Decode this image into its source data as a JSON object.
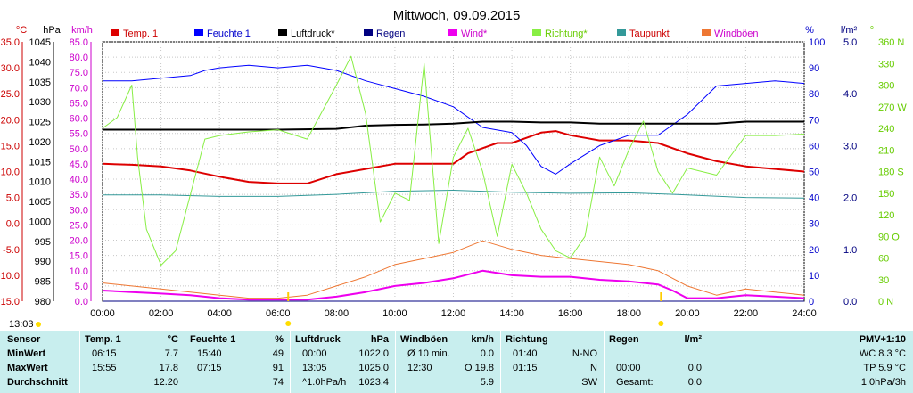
{
  "chart_data": {
    "type": "line",
    "title": "Mittwoch, 09.09.2015",
    "time_label": "13:03",
    "x_ticks": [
      "00:00",
      "02:00",
      "04:00",
      "06:00",
      "08:00",
      "10:00",
      "12:00",
      "14:00",
      "16:00",
      "18:00",
      "20:00",
      "22:00",
      "24:00"
    ],
    "left_axes": [
      {
        "unit": "°C",
        "color": "#cc0000",
        "range": [
          -15.0,
          35.0
        ],
        "ticks": [
          "35.0",
          "30.0",
          "25.0",
          "20.0",
          "15.0",
          "10.0",
          "5.0",
          "0.0",
          "-5.0",
          "-10.0",
          "-15.0"
        ]
      },
      {
        "unit": "hPa",
        "color": "#000000",
        "range": [
          980,
          1045
        ],
        "ticks": [
          "1045",
          "1040",
          "1035",
          "1030",
          "1025",
          "1020",
          "1015",
          "1010",
          "1005",
          "1000",
          "995",
          "990",
          "985",
          "980"
        ]
      },
      {
        "unit": "km/h",
        "color": "#cc00cc",
        "range": [
          0.0,
          85.0
        ],
        "ticks": [
          "85.0",
          "80.0",
          "75.0",
          "70.0",
          "65.0",
          "60.0",
          "55.0",
          "50.0",
          "45.0",
          "40.0",
          "35.0",
          "30.0",
          "25.0",
          "20.0",
          "15.0",
          "10.0",
          "5.0",
          "0.0"
        ]
      }
    ],
    "right_axes": [
      {
        "unit": "%",
        "color": "#0000cc",
        "range": [
          0,
          100
        ],
        "ticks": [
          "100",
          "90",
          "80",
          "70",
          "60",
          "50",
          "40",
          "30",
          "20",
          "10",
          "0"
        ]
      },
      {
        "unit": "l/m²",
        "color": "#000080",
        "range": [
          0.0,
          5.0
        ],
        "ticks": [
          "5.0",
          "4.0",
          "3.0",
          "2.0",
          "1.0",
          "0.0"
        ]
      },
      {
        "unit": "°",
        "color": "#66cc00",
        "range": [
          0,
          360
        ],
        "ticks": [
          "360 N",
          "330",
          "300",
          "270 W",
          "240",
          "210",
          "180 S",
          "150",
          "120",
          "90 O",
          "60",
          "30",
          "0 N"
        ]
      }
    ],
    "legend": [
      {
        "name": "Temp. 1",
        "color": "#dd0000",
        "label_color": "#cc0000"
      },
      {
        "name": "Feuchte 1",
        "color": "#0000ff",
        "label_color": "#0000cc"
      },
      {
        "name": "Luftdruck*",
        "color": "#000000",
        "label_color": "#000000"
      },
      {
        "name": "Regen",
        "color": "#000080",
        "label_color": "#000080"
      },
      {
        "name": "Wind*",
        "color": "#ee00ee",
        "label_color": "#cc00cc"
      },
      {
        "name": "Richtung*",
        "color": "#88ee44",
        "label_color": "#66cc00"
      },
      {
        "name": "Taupunkt",
        "color": "#339999",
        "label_color": "#cc0000"
      },
      {
        "name": "Windböen",
        "color": "#ee7733",
        "label_color": "#cc00cc"
      }
    ],
    "series": [
      {
        "name": "Temp. 1",
        "unit": "°C",
        "hours": [
          0,
          1,
          2,
          3,
          4,
          5,
          6,
          7,
          8,
          9,
          10,
          11,
          12,
          12.5,
          13,
          13.5,
          14,
          14.5,
          15,
          15.5,
          16,
          16.5,
          17,
          18,
          19,
          20,
          21,
          22,
          23,
          24
        ],
        "values": [
          11.5,
          11.3,
          11.0,
          10.2,
          9.0,
          8.0,
          7.7,
          7.7,
          9.5,
          10.5,
          11.5,
          11.5,
          11.5,
          13.5,
          14.5,
          15.5,
          15.5,
          16.5,
          17.5,
          17.8,
          17.0,
          16.5,
          16.0,
          16.0,
          15.5,
          13.5,
          12.0,
          11.0,
          10.5,
          10.0
        ]
      },
      {
        "name": "Feuchte 1",
        "unit": "%",
        "hours": [
          0,
          1,
          2,
          3,
          3.5,
          4,
          5,
          6,
          7,
          7.5,
          8,
          9,
          10,
          11,
          12,
          13,
          14,
          14.5,
          15,
          15.5,
          16,
          17,
          18,
          19,
          19.5,
          20,
          21,
          22,
          23,
          24
        ],
        "values": [
          85,
          85,
          86,
          87,
          89,
          90,
          91,
          90,
          91,
          90,
          89,
          85,
          82,
          79,
          75,
          67,
          65,
          60,
          52,
          49,
          53,
          60,
          64,
          64,
          68,
          72,
          83,
          84,
          85,
          84
        ]
      },
      {
        "name": "Luftdruck*",
        "unit": "hPa",
        "hours": [
          0,
          2,
          4,
          6,
          8,
          9,
          10,
          11,
          12,
          13,
          14,
          15,
          16,
          17,
          18,
          19,
          20,
          21,
          22,
          23,
          24
        ],
        "values": [
          1023.0,
          1023.0,
          1023.0,
          1023.0,
          1023.2,
          1024.0,
          1024.2,
          1024.3,
          1024.5,
          1025.0,
          1025.0,
          1024.8,
          1024.8,
          1024.5,
          1024.5,
          1024.5,
          1024.5,
          1024.5,
          1025.0,
          1025.0,
          1025.0
        ]
      },
      {
        "name": "Taupunkt",
        "unit": "°C",
        "hours": [
          0,
          2,
          4,
          6,
          8,
          10,
          12,
          14,
          16,
          18,
          20,
          22,
          24
        ],
        "values": [
          5.5,
          5.5,
          5.2,
          5.2,
          5.6,
          6.2,
          6.4,
          6.0,
          5.8,
          5.9,
          5.5,
          5.0,
          4.9
        ]
      },
      {
        "name": "Wind*",
        "unit": "km/h",
        "hours": [
          0,
          1,
          2,
          3,
          4,
          5,
          6,
          7,
          8,
          9,
          10,
          11,
          12,
          13,
          14,
          15,
          16,
          17,
          18,
          19,
          19.5,
          20,
          21,
          22,
          23,
          24
        ],
        "values": [
          3.5,
          3.0,
          2.5,
          2.0,
          1.0,
          0.5,
          0.5,
          0.5,
          1.5,
          3.0,
          5.0,
          6.0,
          7.5,
          10.0,
          8.5,
          8.0,
          8.0,
          7.0,
          6.5,
          5.5,
          3.5,
          1.0,
          1.0,
          2.0,
          1.5,
          1.0
        ]
      },
      {
        "name": "Windböen",
        "unit": "km/h",
        "hours": [
          0,
          1,
          2,
          3,
          4,
          5,
          6,
          7,
          8,
          9,
          10,
          11,
          12,
          13,
          14,
          15,
          16,
          17,
          18,
          19,
          20,
          21,
          22,
          23,
          24
        ],
        "values": [
          6.0,
          5.0,
          4.0,
          3.0,
          2.0,
          1.0,
          1.0,
          2.0,
          5.0,
          8.0,
          12.0,
          14.0,
          16.0,
          19.8,
          17.0,
          15.0,
          14.0,
          13.0,
          12.0,
          10.0,
          5.0,
          2.0,
          4.0,
          3.0,
          2.0
        ]
      },
      {
        "name": "Richtung*",
        "unit": "°",
        "hours": [
          0,
          0.5,
          1,
          1.2,
          1.5,
          2,
          2.5,
          3.5,
          4,
          5,
          6,
          7,
          8,
          8.5,
          9,
          9.5,
          10,
          10.5,
          11,
          11.5,
          12,
          12.5,
          13,
          13.5,
          14,
          14.5,
          15,
          15.5,
          16,
          16.5,
          17,
          17.5,
          18,
          18.5,
          19,
          19.5,
          20,
          21,
          22,
          23,
          24
        ],
        "values": [
          240,
          255,
          300,
          200,
          100,
          50,
          70,
          225,
          230,
          235,
          238,
          225,
          300,
          340,
          260,
          110,
          150,
          140,
          330,
          80,
          200,
          240,
          180,
          90,
          190,
          150,
          100,
          70,
          60,
          90,
          200,
          160,
          210,
          250,
          180,
          150,
          185,
          175,
          230,
          230,
          232
        ]
      },
      {
        "name": "Regen",
        "unit": "l/m²",
        "hours": [
          0,
          24
        ],
        "values": [
          0.0,
          0.0
        ]
      }
    ],
    "markers": [
      6.35,
      19.1
    ],
    "grid": true
  },
  "stats": {
    "columns": [
      {
        "header": "Sensor",
        "unit": "",
        "rows": [
          "MinWert",
          "MaxWert",
          "Durchschnitt"
        ]
      },
      {
        "header": "Temp. 1",
        "unit": "°C",
        "times": [
          "06:15",
          "15:55",
          ""
        ],
        "values": [
          "7.7",
          "17.8",
          "12.20"
        ]
      },
      {
        "header": "Feuchte 1",
        "unit": "%",
        "times": [
          "15:40",
          "07:15",
          ""
        ],
        "values": [
          "49",
          "91",
          "74"
        ]
      },
      {
        "header": "Luftdruck",
        "unit": "hPa",
        "times": [
          "00:00",
          "13:05",
          "^1.0hPa/h"
        ],
        "values": [
          "1022.0",
          "1025.0",
          "1023.4"
        ]
      },
      {
        "header": "Windböen",
        "unit": "km/h",
        "times": [
          "Ø 10 min.",
          "12:30",
          ""
        ],
        "values": [
          "0.0",
          "O 19.8",
          "5.9"
        ]
      },
      {
        "header": "Richtung",
        "unit": "",
        "times": [
          "01:40",
          "01:15",
          ""
        ],
        "values": [
          "N-NO",
          "N",
          "SW"
        ]
      },
      {
        "header": "Regen",
        "unit": "l/m²",
        "times": [
          "",
          "00:00",
          "Gesamt:"
        ],
        "values": [
          "",
          "0.0",
          "0.0"
        ]
      },
      {
        "header": "PMV+1:10",
        "unit": "",
        "times": [],
        "values": [
          "WC 8.3 °C",
          "TP 5.9 °C",
          "1.0hPa/3h"
        ]
      }
    ]
  }
}
